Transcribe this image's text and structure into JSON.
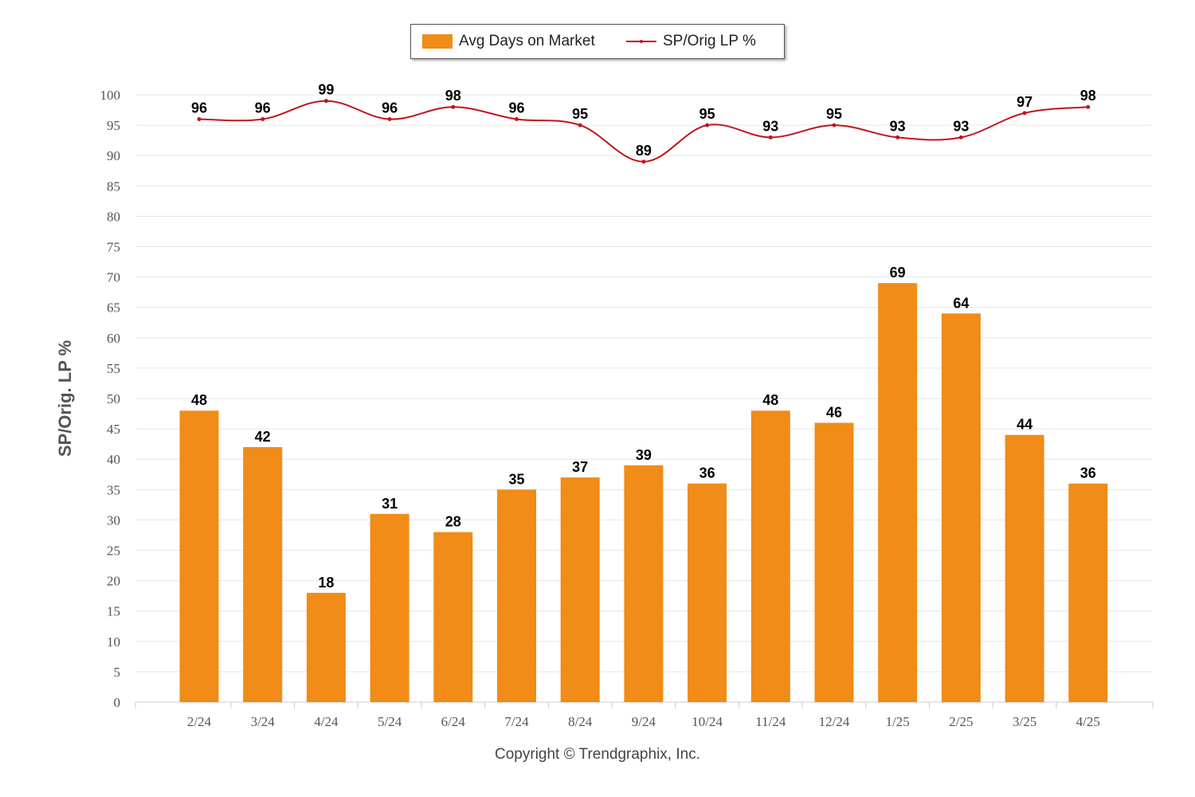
{
  "legend": {
    "bar_label": "Avg Days on Market",
    "line_label": "SP/Orig LP %"
  },
  "footer": {
    "copyright": "Copyright © Trendgraphix, Inc."
  },
  "colors": {
    "bar": "#f08c17",
    "line": "#c0151b",
    "grid": "#e6e6e6",
    "axis_text": "#555555"
  },
  "chart_data": {
    "type": "bar",
    "title": "",
    "xlabel": "",
    "ylabel": "SP/Orig. LP %",
    "ylim": [
      0,
      100
    ],
    "yticks": [
      0,
      5,
      10,
      15,
      20,
      25,
      30,
      35,
      40,
      45,
      50,
      55,
      60,
      65,
      70,
      75,
      80,
      85,
      90,
      95,
      100
    ],
    "grid": true,
    "legend_position": "top-center",
    "categories": [
      "2/24",
      "3/24",
      "4/24",
      "5/24",
      "6/24",
      "7/24",
      "8/24",
      "9/24",
      "10/24",
      "11/24",
      "12/24",
      "1/25",
      "2/25",
      "3/25",
      "4/25"
    ],
    "series": [
      {
        "name": "Avg Days on Market",
        "type": "bar",
        "values": [
          48,
          42,
          18,
          31,
          28,
          35,
          37,
          39,
          36,
          48,
          46,
          69,
          64,
          44,
          36
        ]
      },
      {
        "name": "SP/Orig LP %",
        "type": "line",
        "values": [
          96,
          96,
          99,
          96,
          98,
          96,
          95,
          89,
          95,
          93,
          95,
          93,
          93,
          97,
          98
        ]
      }
    ]
  }
}
